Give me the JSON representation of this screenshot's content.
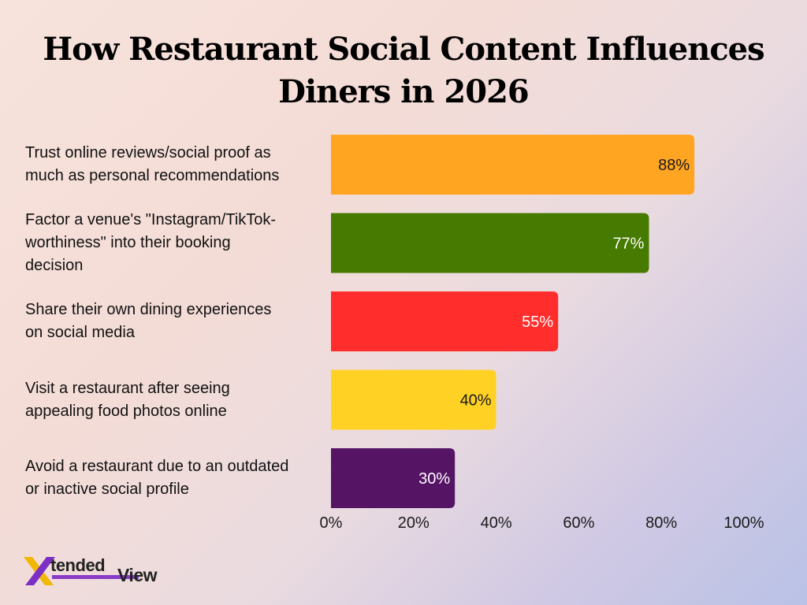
{
  "chart_data": {
    "type": "bar",
    "orientation": "horizontal",
    "title": "How Restaurant Social Content Influences Diners in 2026",
    "title_lines": [
      "How Restaurant Social Content Influences",
      "Diners in 2026"
    ],
    "categories": [
      "Trust online reviews/social proof as much as personal recommendations",
      "Factor a venue's \"Instagram/TikTok-worthiness\" into their booking decision",
      "Share their own dining experiences on social media",
      "Visit a restaurant after seeing appealing food photos online",
      "Avoid a restaurant due to an outdated or inactive social profile"
    ],
    "category_lines": [
      [
        "Trust online reviews/social proof as",
        "much as personal recommendations"
      ],
      [
        "Factor a venue's \"Instagram/TikTok-",
        "worthiness\" into their booking",
        "decision"
      ],
      [
        "Share their own dining experiences",
        "on social media"
      ],
      [
        "Visit a restaurant after seeing",
        "appealing food photos online"
      ],
      [
        "Avoid a restaurant due to an outdated",
        "or inactive social profile"
      ]
    ],
    "values": [
      88,
      77,
      55,
      40,
      30
    ],
    "value_labels": [
      "88%",
      "77%",
      "55%",
      "40%",
      "30%"
    ],
    "bar_colors": [
      "#ffa522",
      "#467a00",
      "#ff2d2b",
      "#ffd124",
      "#561465"
    ],
    "value_label_colors": [
      "#1a1a1a",
      "#ffffff",
      "#ffffff",
      "#1a1a1a",
      "#ffffff"
    ],
    "xlim": [
      0,
      100
    ],
    "xticks": [
      0,
      20,
      40,
      60,
      80,
      100
    ],
    "xtick_labels": [
      "0%",
      "20%",
      "40%",
      "60%",
      "80%",
      "100%"
    ],
    "grid": false,
    "legend": "none"
  },
  "logo": {
    "mark": "X",
    "text_top": "tended",
    "text_bottom": "View",
    "colors": {
      "x_left": "#f2b705",
      "x_right": "#7b2fc4",
      "underline": "#8a3cc8"
    }
  }
}
